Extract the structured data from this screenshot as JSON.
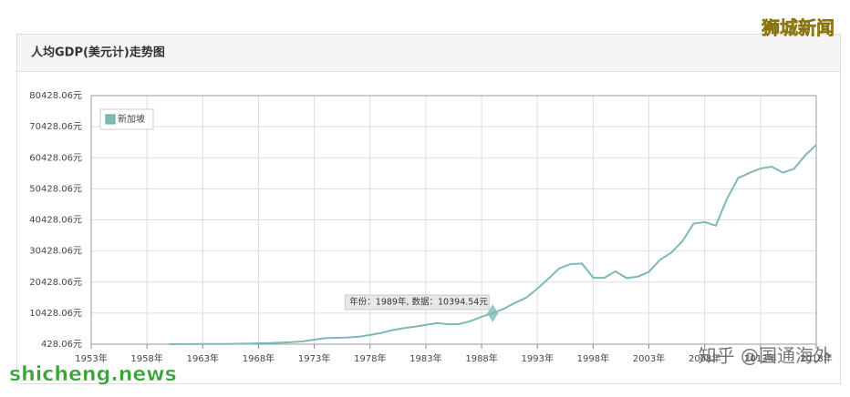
{
  "chart_data": {
    "type": "line",
    "title": "人均GDP(美元计)走势图",
    "x": [
      1960,
      1961,
      1962,
      1963,
      1964,
      1965,
      1966,
      1967,
      1968,
      1969,
      1970,
      1971,
      1972,
      1973,
      1974,
      1975,
      1976,
      1977,
      1978,
      1979,
      1980,
      1981,
      1982,
      1983,
      1984,
      1985,
      1986,
      1987,
      1988,
      1989,
      1990,
      1991,
      1992,
      1993,
      1994,
      1995,
      1996,
      1997,
      1998,
      1999,
      2000,
      2001,
      2002,
      2003,
      2004,
      2005,
      2006,
      2007,
      2008,
      2009,
      2010,
      2011,
      2012,
      2013,
      2014,
      2015,
      2016,
      2017,
      2018
    ],
    "series": [
      {
        "name": "新加坡",
        "color": "#7fb8b8",
        "values": [
          428.06,
          449,
          472,
          511,
          485,
          517,
          567,
          626,
          708,
          810,
          926,
          1071,
          1353,
          1886,
          2356,
          2490,
          2577,
          2850,
          3404,
          4046,
          4928,
          5596,
          6077,
          6633,
          7234,
          6834,
          6914,
          7848,
          9262,
          10394.54,
          11862,
          13737,
          15404,
          18302,
          21578,
          24915,
          26233,
          26376,
          21829,
          21796,
          23852,
          21700,
          22160,
          23730,
          27610,
          29870,
          33580,
          39224,
          39722,
          38578,
          47237,
          53891,
          55546,
          56967,
          57563,
          55647,
          56828,
          61176,
          64582
        ]
      }
    ],
    "xlim": [
      1953,
      2018
    ],
    "xticks": [
      {
        "value": 1953,
        "label": "1953年"
      },
      {
        "value": 1958,
        "label": "1958年"
      },
      {
        "value": 1963,
        "label": "1963年"
      },
      {
        "value": 1968,
        "label": "1968年"
      },
      {
        "value": 1973,
        "label": "1973年"
      },
      {
        "value": 1978,
        "label": "1978年"
      },
      {
        "value": 1983,
        "label": "1983年"
      },
      {
        "value": 1988,
        "label": "1988年"
      },
      {
        "value": 1993,
        "label": "1993年"
      },
      {
        "value": 1998,
        "label": "1998年"
      },
      {
        "value": 2003,
        "label": "2003年"
      },
      {
        "value": 2008,
        "label": "2008年"
      },
      {
        "value": 2013,
        "label": "2013年"
      },
      {
        "value": 2018,
        "label": "2018年"
      }
    ],
    "ylim": [
      428.06,
      80428.06
    ],
    "yticks": [
      {
        "value": 428.06,
        "label": "428.06元"
      },
      {
        "value": 10428.06,
        "label": "10428.06元"
      },
      {
        "value": 20428.06,
        "label": "20428.06元"
      },
      {
        "value": 30428.06,
        "label": "30428.06元"
      },
      {
        "value": 40428.06,
        "label": "40428.06元"
      },
      {
        "value": 50428.06,
        "label": "50428.06元"
      },
      {
        "value": 60428.06,
        "label": "60428.06元"
      },
      {
        "value": 70428.06,
        "label": "70428.06元"
      },
      {
        "value": 80428.06,
        "label": "80428.06元"
      }
    ],
    "grid": true,
    "legend": "top-left",
    "tooltip": "年份：1989年, 数据：10394.54元"
  },
  "watermarks": [
    "狮城新闻",
    "shicheng.news",
    "知乎 @国通海外"
  ]
}
